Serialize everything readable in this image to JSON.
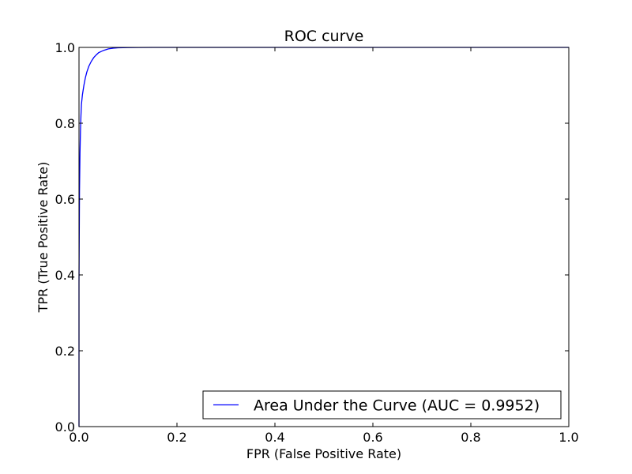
{
  "chart_data": {
    "type": "line",
    "title": "ROC curve",
    "xlabel": "FPR (False Positive Rate)",
    "ylabel": "TPR (True Positive Rate)",
    "xlim": [
      0.0,
      1.0
    ],
    "ylim": [
      0.0,
      1.0
    ],
    "xticks": [
      "0.0",
      "0.2",
      "0.4",
      "0.6",
      "0.8",
      "1.0"
    ],
    "yticks": [
      "0.0",
      "0.2",
      "0.4",
      "0.6",
      "0.8",
      "1.0"
    ],
    "grid": false,
    "legend_position": "lower-right",
    "series": [
      {
        "name": "Area Under the Curve (AUC = 0.9952)",
        "color": "#0000ff",
        "x": [
          0.0,
          0.0,
          0.001,
          0.002,
          0.003,
          0.004,
          0.005,
          0.007,
          0.01,
          0.013,
          0.016,
          0.02,
          0.025,
          0.03,
          0.035,
          0.04,
          0.05,
          0.06,
          0.07,
          0.08,
          0.1,
          0.12,
          0.15,
          1.0
        ],
        "y": [
          0.0,
          0.38,
          0.62,
          0.72,
          0.78,
          0.82,
          0.85,
          0.875,
          0.9,
          0.92,
          0.935,
          0.95,
          0.963,
          0.973,
          0.98,
          0.986,
          0.992,
          0.996,
          0.998,
          0.999,
          0.9995,
          0.9998,
          1.0,
          1.0
        ]
      }
    ]
  }
}
